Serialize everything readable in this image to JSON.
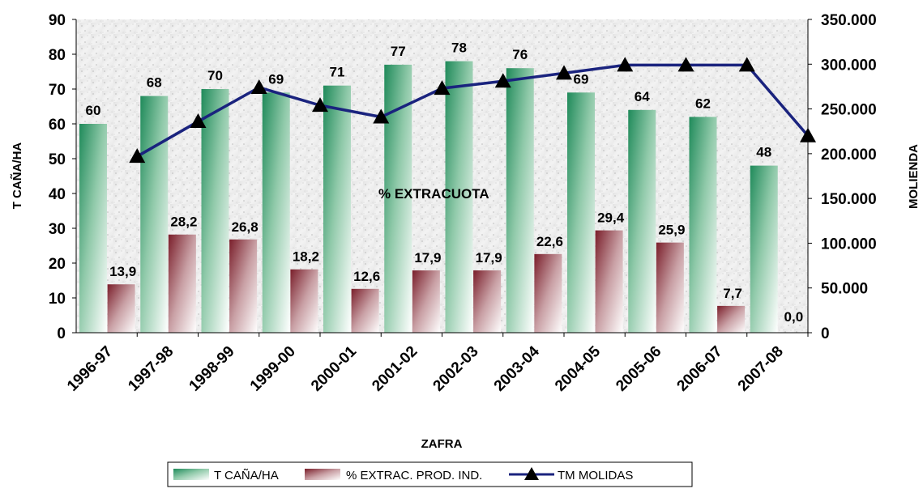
{
  "chart_data": {
    "type": "bar",
    "categories": [
      "1996-97",
      "1997-98",
      "1998-99",
      "1999-00",
      "2000-01",
      "2001-02",
      "2002-03",
      "2003-04",
      "2004-05",
      "2005-06",
      "2006-07",
      "2007-08"
    ],
    "series": [
      {
        "name": "T CAÑA/HA",
        "type": "bar",
        "axis": "left",
        "color": "#1f8a5a",
        "values": [
          60,
          68,
          70,
          69,
          71,
          77,
          78,
          76,
          69,
          64,
          62,
          48
        ],
        "labels": [
          "60",
          "68",
          "70",
          "69",
          "71",
          "77",
          "78",
          "76",
          "69",
          "64",
          "62",
          "48"
        ]
      },
      {
        "name": "% EXTRAC. PROD. IND.",
        "type": "bar",
        "axis": "left",
        "color": "#7a1e2a",
        "values": [
          13.9,
          28.2,
          26.8,
          18.2,
          12.6,
          17.9,
          17.9,
          22.6,
          29.4,
          25.9,
          7.7,
          0.0
        ],
        "labels": [
          "13,9",
          "28,2",
          "26,8",
          "18,2",
          "12,6",
          "17,9",
          "17,9",
          "22,6",
          "29,4",
          "25,9",
          "7,7",
          "0,0"
        ]
      },
      {
        "name": "TM MOLIDAS",
        "type": "line",
        "axis": "right",
        "color": "#1a237e",
        "marker": "triangle",
        "values": [
          197000,
          236000,
          274000,
          254000,
          241000,
          273000,
          281000,
          290000,
          299000,
          299000,
          299000,
          220000
        ]
      }
    ],
    "xlabel": "ZAFRA",
    "ylabel": "T CAÑA/HA",
    "y2label": "MOLIENDA",
    "ylim": [
      0,
      90
    ],
    "y_ticks": [
      "0",
      "10",
      "20",
      "30",
      "40",
      "50",
      "60",
      "70",
      "80",
      "90"
    ],
    "y2lim": [
      0,
      350000
    ],
    "y2_ticks": [
      "0",
      "50.000",
      "100.000",
      "150.000",
      "200.000",
      "250.000",
      "300.000",
      "350.000"
    ],
    "annotation": "% EXTRACUOTA",
    "legend": {
      "position": "bottom",
      "items": [
        "T CAÑA/HA",
        "% EXTRAC. PROD. IND.",
        "TM MOLIDAS"
      ]
    },
    "grid": false
  }
}
